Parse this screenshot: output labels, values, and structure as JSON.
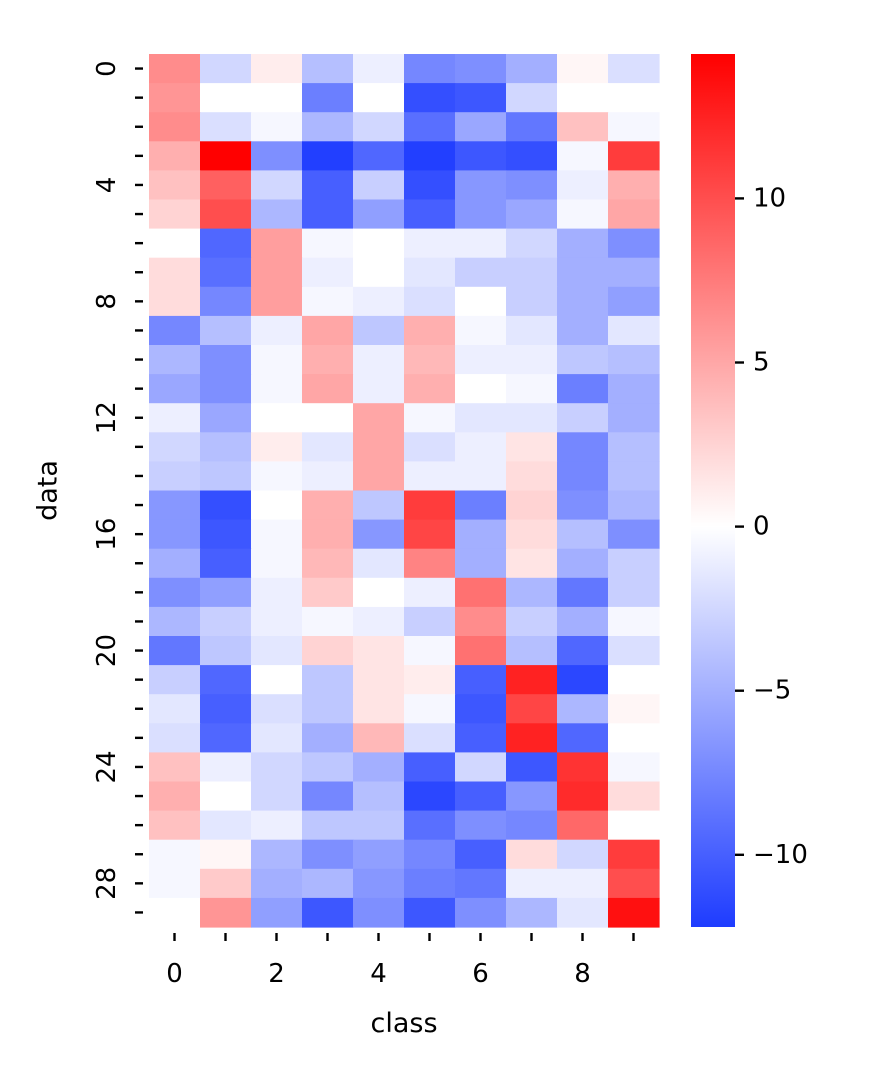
{
  "chart_data": {
    "type": "heatmap",
    "title": "",
    "xlabel": "class",
    "ylabel": "data",
    "x_categories": [
      0,
      1,
      2,
      3,
      4,
      5,
      6,
      7,
      8,
      9
    ],
    "y_categories": [
      0,
      1,
      2,
      3,
      4,
      5,
      6,
      7,
      8,
      9,
      10,
      11,
      12,
      13,
      14,
      15,
      16,
      17,
      18,
      19,
      20,
      21,
      22,
      23,
      24,
      25,
      26,
      27,
      28,
      29
    ],
    "x_tick_labels": [
      "0",
      "2",
      "4",
      "6",
      "8"
    ],
    "y_tick_labels": [
      "0",
      "4",
      "8",
      "12",
      "16",
      "20",
      "24",
      "28"
    ],
    "colormap": {
      "low": "#1e3cff",
      "mid": "#ffffff",
      "high": "#ff0000"
    },
    "color_range": [
      -12.2,
      14.4
    ],
    "colorbar_ticks": [
      -10,
      -5,
      0,
      5,
      10
    ],
    "colorbar_tick_labels": [
      "−10",
      "−5",
      "0",
      "5",
      "10"
    ],
    "values": [
      [
        6.5,
        -2.5,
        1,
        -4,
        -1,
        -7.5,
        -7,
        -5,
        0.5,
        -2
      ],
      [
        6,
        0,
        0,
        -8,
        0,
        -11,
        -10.5,
        -2.5,
        0,
        0
      ],
      [
        6.5,
        -2,
        -0.5,
        -4.5,
        -2.5,
        -9,
        -5.5,
        -8.5,
        3.5,
        -0.5
      ],
      [
        4.5,
        14.5,
        -7,
        -12,
        -9.5,
        -12,
        -10.5,
        -11,
        -0.5,
        11
      ],
      [
        3.5,
        9,
        -2.5,
        -10,
        -3,
        -11,
        -6.5,
        -7,
        -1,
        4.5
      ],
      [
        2.5,
        10,
        -4.5,
        -10,
        -6,
        -10,
        -6.5,
        -5.5,
        -0.5,
        5
      ],
      [
        0,
        -9.5,
        5.5,
        -0.5,
        0,
        -1,
        -1,
        -2.5,
        -5,
        -7
      ],
      [
        2,
        -9,
        5.5,
        -1,
        0,
        -1.5,
        -3,
        -3,
        -5,
        -5
      ],
      [
        2,
        -7.5,
        5.5,
        -0.5,
        -1,
        -2,
        0,
        -3,
        -5,
        -6
      ],
      [
        -7.5,
        -4,
        -1,
        5,
        -3.5,
        4.5,
        -0.5,
        -1.5,
        -5,
        -1.5
      ],
      [
        -4.5,
        -7,
        -0.5,
        4.5,
        -1,
        4,
        -1,
        -1,
        -3.5,
        -4
      ],
      [
        -5.5,
        -7,
        -0.5,
        5,
        -1,
        4.5,
        0,
        -0.5,
        -8,
        -5
      ],
      [
        -1,
        -5.5,
        0,
        0,
        5,
        -0.5,
        -1.5,
        -1.5,
        -3,
        -5
      ],
      [
        -2.5,
        -4,
        1,
        -1.5,
        5,
        -2,
        -1,
        1.5,
        -7.5,
        -4
      ],
      [
        -3,
        -3.5,
        -0.5,
        -1,
        5,
        -1,
        -1,
        2,
        -7.5,
        -4
      ],
      [
        -6.5,
        -11,
        0,
        4.5,
        -3.5,
        11,
        -8,
        2.5,
        -7,
        -4.5
      ],
      [
        -6.5,
        -10.5,
        -0.5,
        4.5,
        -6.5,
        10.5,
        -5,
        2,
        -4,
        -7
      ],
      [
        -5,
        -10,
        -0.5,
        4,
        -1.5,
        7,
        -5,
        1.5,
        -5,
        -3
      ],
      [
        -7,
        -6,
        -1,
        3,
        0,
        -1,
        8,
        -4.5,
        -8.5,
        -3
      ],
      [
        -4.5,
        -3,
        -1,
        -0.5,
        -1,
        -3,
        6.5,
        -3,
        -5,
        -0.5
      ],
      [
        -8.5,
        -3.5,
        -1.5,
        2.5,
        1.5,
        -0.5,
        8,
        -4,
        -9.5,
        -2
      ],
      [
        -3,
        -9.5,
        0,
        -3.5,
        1.5,
        1,
        -10,
        12.5,
        -11.5,
        0
      ],
      [
        -1.5,
        -10,
        -2,
        -3.5,
        1.5,
        -0.5,
        -10.5,
        10.5,
        -4.5,
        0.5
      ],
      [
        -2,
        -9.5,
        -1.5,
        -5,
        4,
        -2,
        -10,
        12.5,
        -9.5,
        0
      ],
      [
        3.5,
        -1,
        -2.5,
        -3.5,
        -5,
        -10,
        -2.5,
        -10.5,
        11.5,
        -0.5
      ],
      [
        4.5,
        0,
        -2.5,
        -7.5,
        -4,
        -11.5,
        -10,
        -6.5,
        12,
        2
      ],
      [
        3.5,
        -1.5,
        -1,
        -3.5,
        -3.5,
        -9,
        -7,
        -7.5,
        8.5,
        0
      ],
      [
        -0.5,
        0.5,
        -4.5,
        -7,
        -6,
        -7.5,
        -10,
        2,
        -2.5,
        11
      ],
      [
        -0.5,
        3,
        -5,
        -4.5,
        -6.5,
        -8,
        -8.5,
        -1,
        -1,
        10
      ],
      [
        0,
        6,
        -6,
        -10.5,
        -7,
        -10.5,
        -7,
        -4.5,
        -1.5,
        13.5
      ]
    ]
  }
}
